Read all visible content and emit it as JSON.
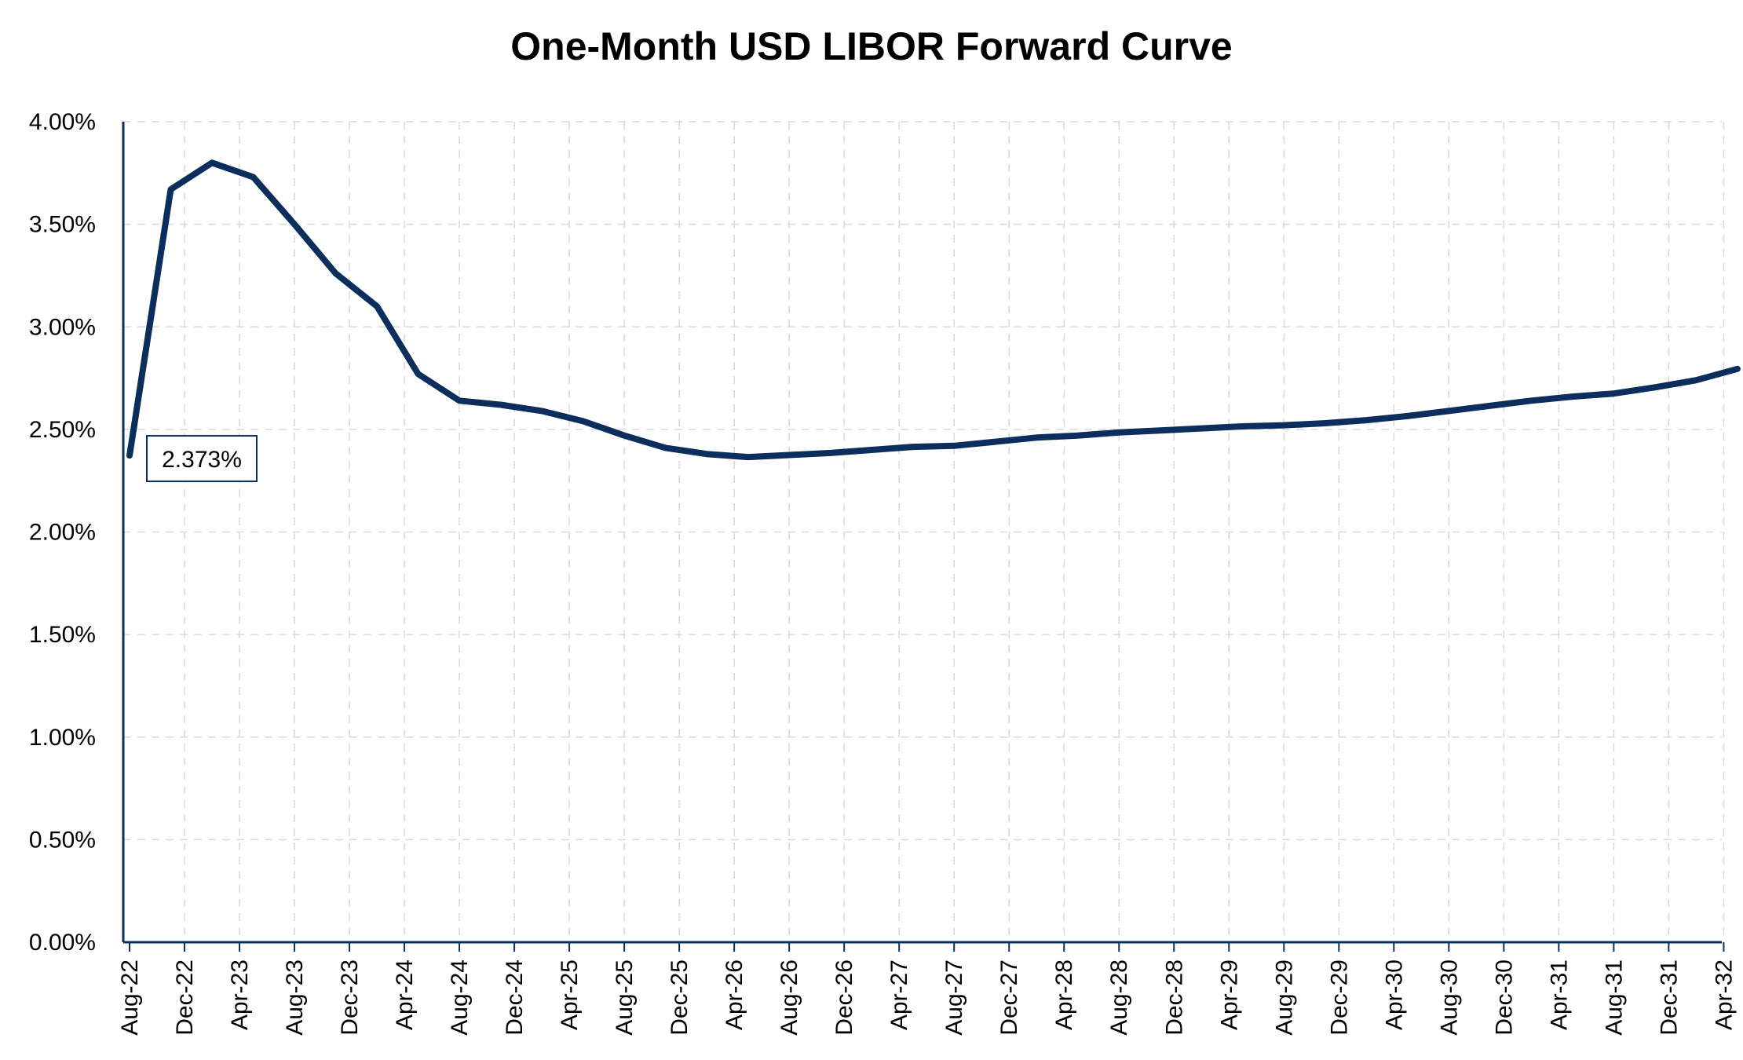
{
  "chart_data": {
    "type": "line",
    "title": "One-Month USD LIBOR Forward Curve",
    "xlabel": "",
    "ylabel": "",
    "ylim": [
      0,
      4
    ],
    "yticks": [
      "0.00%",
      "0.50%",
      "1.00%",
      "1.50%",
      "2.00%",
      "2.50%",
      "3.00%",
      "3.50%",
      "4.00%"
    ],
    "ytick_values": [
      0,
      0.5,
      1.0,
      1.5,
      2.0,
      2.5,
      3.0,
      3.5,
      4.0
    ],
    "xticks": [
      "Aug-22",
      "Dec-22",
      "Apr-23",
      "Aug-23",
      "Dec-23",
      "Apr-24",
      "Aug-24",
      "Dec-24",
      "Apr-25",
      "Aug-25",
      "Dec-25",
      "Apr-26",
      "Aug-26",
      "Dec-26",
      "Apr-27",
      "Aug-27",
      "Dec-27",
      "Apr-28",
      "Aug-28",
      "Dec-28",
      "Apr-29",
      "Aug-29",
      "Dec-29",
      "Apr-30",
      "Aug-30",
      "Dec-30",
      "Apr-31",
      "Aug-31",
      "Dec-31",
      "Apr-32"
    ],
    "grid": true,
    "line_color": "#0b2e5c",
    "series": [
      {
        "x": [
          "Aug-22",
          "Nov-22",
          "Feb-23",
          "May-23",
          "Aug-23",
          "Nov-23",
          "Feb-24",
          "May-24",
          "Aug-24",
          "Nov-24",
          "Feb-25",
          "May-25",
          "Aug-25",
          "Nov-25",
          "Feb-26",
          "May-26",
          "Aug-26",
          "Nov-26",
          "Feb-27",
          "May-27",
          "Aug-27",
          "Nov-27",
          "Feb-28",
          "May-28",
          "Aug-28",
          "Nov-28",
          "Feb-29",
          "May-29",
          "Aug-29",
          "Nov-29",
          "Feb-30",
          "May-30",
          "Aug-30",
          "Nov-30",
          "Feb-31",
          "May-31",
          "Aug-31",
          "Nov-31",
          "Feb-32",
          "May-32"
        ],
        "values": [
          2.373,
          3.67,
          3.8,
          3.73,
          3.5,
          3.26,
          3.1,
          2.77,
          2.64,
          2.62,
          2.59,
          2.54,
          2.47,
          2.41,
          2.38,
          2.365,
          2.375,
          2.385,
          2.4,
          2.415,
          2.42,
          2.44,
          2.46,
          2.47,
          2.485,
          2.495,
          2.505,
          2.515,
          2.52,
          2.53,
          2.545,
          2.565,
          2.59,
          2.615,
          2.64,
          2.66,
          2.675,
          2.705,
          2.74,
          2.795
        ]
      }
    ],
    "annotation": {
      "text": "2.373%",
      "point_index": 0,
      "value": 2.373
    }
  }
}
